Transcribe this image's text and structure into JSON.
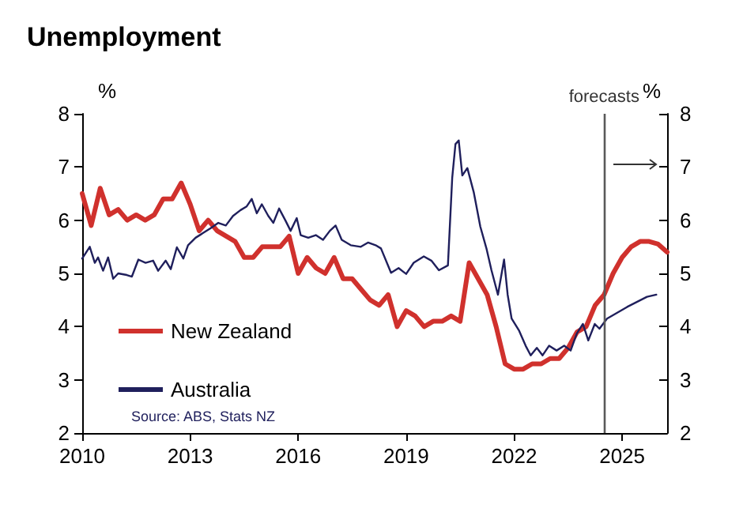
{
  "chart_data": {
    "type": "line",
    "title": "Unemployment",
    "ylabel": "%",
    "y2label": "%",
    "xlim": [
      2010,
      2026.25
    ],
    "xticks": [
      2010,
      2013,
      2016,
      2019,
      2022,
      2025
    ],
    "ylim": [
      2,
      8
    ],
    "yticks": [
      2,
      3,
      4,
      5,
      6,
      7,
      8
    ],
    "y2lim": [
      2,
      8
    ],
    "y2ticks": [
      2,
      3,
      4,
      5,
      6,
      7,
      8
    ],
    "grid": false,
    "legend": "left",
    "marker": "none",
    "line_style": "solid",
    "annotations": [
      "Source: ABS, Stats NZ"
    ],
    "ref_lines": [
      {
        "axis": "x",
        "value": 2024.5,
        "label": "forecasts",
        "color": "#595959"
      }
    ],
    "series": [
      {
        "name": "New Zealand",
        "color": "#d0312d",
        "x": [
          2010,
          2010.25,
          2010.5,
          2010.75,
          2011,
          2011.25,
          2011.5,
          2011.75,
          2012,
          2012.25,
          2012.5,
          2012.75,
          2013,
          2013.25,
          2013.5,
          2013.75,
          2014,
          2014.25,
          2014.5,
          2014.75,
          2015,
          2015.25,
          2015.5,
          2015.75,
          2016,
          2016.25,
          2016.5,
          2016.75,
          2017,
          2017.25,
          2017.5,
          2017.75,
          2018,
          2018.25,
          2018.5,
          2018.75,
          2019,
          2019.25,
          2019.5,
          2019.75,
          2020,
          2020.25,
          2020.5,
          2020.75,
          2021,
          2021.25,
          2021.5,
          2021.75,
          2022,
          2022.25,
          2022.5,
          2022.75,
          2023,
          2023.25,
          2023.5,
          2023.75,
          2024,
          2024.25,
          2024.5,
          2024.75,
          2025,
          2025.25,
          2025.5,
          2025.75,
          2026,
          2026.25
        ],
        "values": [
          6.5,
          5.9,
          6.6,
          6.1,
          6.2,
          6.0,
          6.1,
          6.0,
          6.1,
          6.4,
          6.4,
          6.7,
          6.3,
          5.8,
          6.0,
          5.8,
          5.7,
          5.6,
          5.3,
          5.3,
          5.5,
          5.5,
          5.5,
          5.7,
          5.0,
          5.3,
          5.1,
          5.0,
          5.3,
          4.9,
          4.9,
          4.7,
          4.5,
          4.4,
          4.6,
          4.0,
          4.3,
          4.2,
          4.0,
          4.1,
          4.1,
          4.2,
          4.1,
          5.2,
          4.9,
          4.6,
          4.0,
          3.3,
          3.2,
          3.2,
          3.3,
          3.3,
          3.4,
          3.4,
          3.6,
          3.9,
          4.0,
          4.4,
          4.6,
          5.0,
          5.3,
          5.5,
          5.6,
          5.6,
          5.55,
          5.4
        ]
      },
      {
        "name": "Australia",
        "color": "#1f1f5c",
        "x": [
          2010.0,
          2010.21,
          2010.35,
          2010.44,
          2010.58,
          2010.72,
          2010.86,
          2011.0,
          2011.24,
          2011.38,
          2011.56,
          2011.76,
          2011.97,
          2012.11,
          2012.32,
          2012.46,
          2012.63,
          2012.81,
          2012.94,
          2013.15,
          2013.36,
          2013.57,
          2013.78,
          2013.99,
          2014.19,
          2014.4,
          2014.57,
          2014.71,
          2014.85,
          2014.99,
          2015.17,
          2015.31,
          2015.47,
          2015.65,
          2015.79,
          2015.96,
          2016.07,
          2016.28,
          2016.49,
          2016.69,
          2016.88,
          2017.04,
          2017.21,
          2017.46,
          2017.74,
          2017.94,
          2018.15,
          2018.3,
          2018.58,
          2018.79,
          2019.0,
          2019.21,
          2019.49,
          2019.7,
          2019.91,
          2020.16,
          2020.28,
          2020.37,
          2020.46,
          2020.56,
          2020.7,
          2020.88,
          2021.06,
          2021.23,
          2021.37,
          2021.55,
          2021.72,
          2021.82,
          2021.93,
          2022.14,
          2022.32,
          2022.46,
          2022.63,
          2022.79,
          2022.97,
          2023.18,
          2023.39,
          2023.57,
          2023.74,
          2023.91,
          2024.06,
          2024.24,
          2024.37,
          2024.58,
          2025.14,
          2025.69,
          2025.95
        ],
        "values": [
          5.28,
          5.5,
          5.2,
          5.3,
          5.05,
          5.3,
          4.9,
          5.0,
          4.97,
          4.94,
          5.26,
          5.2,
          5.24,
          5.05,
          5.24,
          5.08,
          5.49,
          5.28,
          5.53,
          5.67,
          5.76,
          5.85,
          5.95,
          5.9,
          6.08,
          6.19,
          6.26,
          6.4,
          6.13,
          6.3,
          6.08,
          5.95,
          6.22,
          5.99,
          5.8,
          6.04,
          5.72,
          5.67,
          5.72,
          5.63,
          5.8,
          5.9,
          5.63,
          5.53,
          5.5,
          5.58,
          5.53,
          5.47,
          5.01,
          5.1,
          4.99,
          5.2,
          5.32,
          5.24,
          5.06,
          5.15,
          6.8,
          7.43,
          7.5,
          6.84,
          6.98,
          6.52,
          5.88,
          5.47,
          5.06,
          4.6,
          5.26,
          4.6,
          4.15,
          3.92,
          3.64,
          3.46,
          3.6,
          3.46,
          3.64,
          3.55,
          3.64,
          3.55,
          3.87,
          4.05,
          3.74,
          4.05,
          3.96,
          4.15,
          4.37,
          4.56,
          4.6
        ]
      }
    ]
  }
}
